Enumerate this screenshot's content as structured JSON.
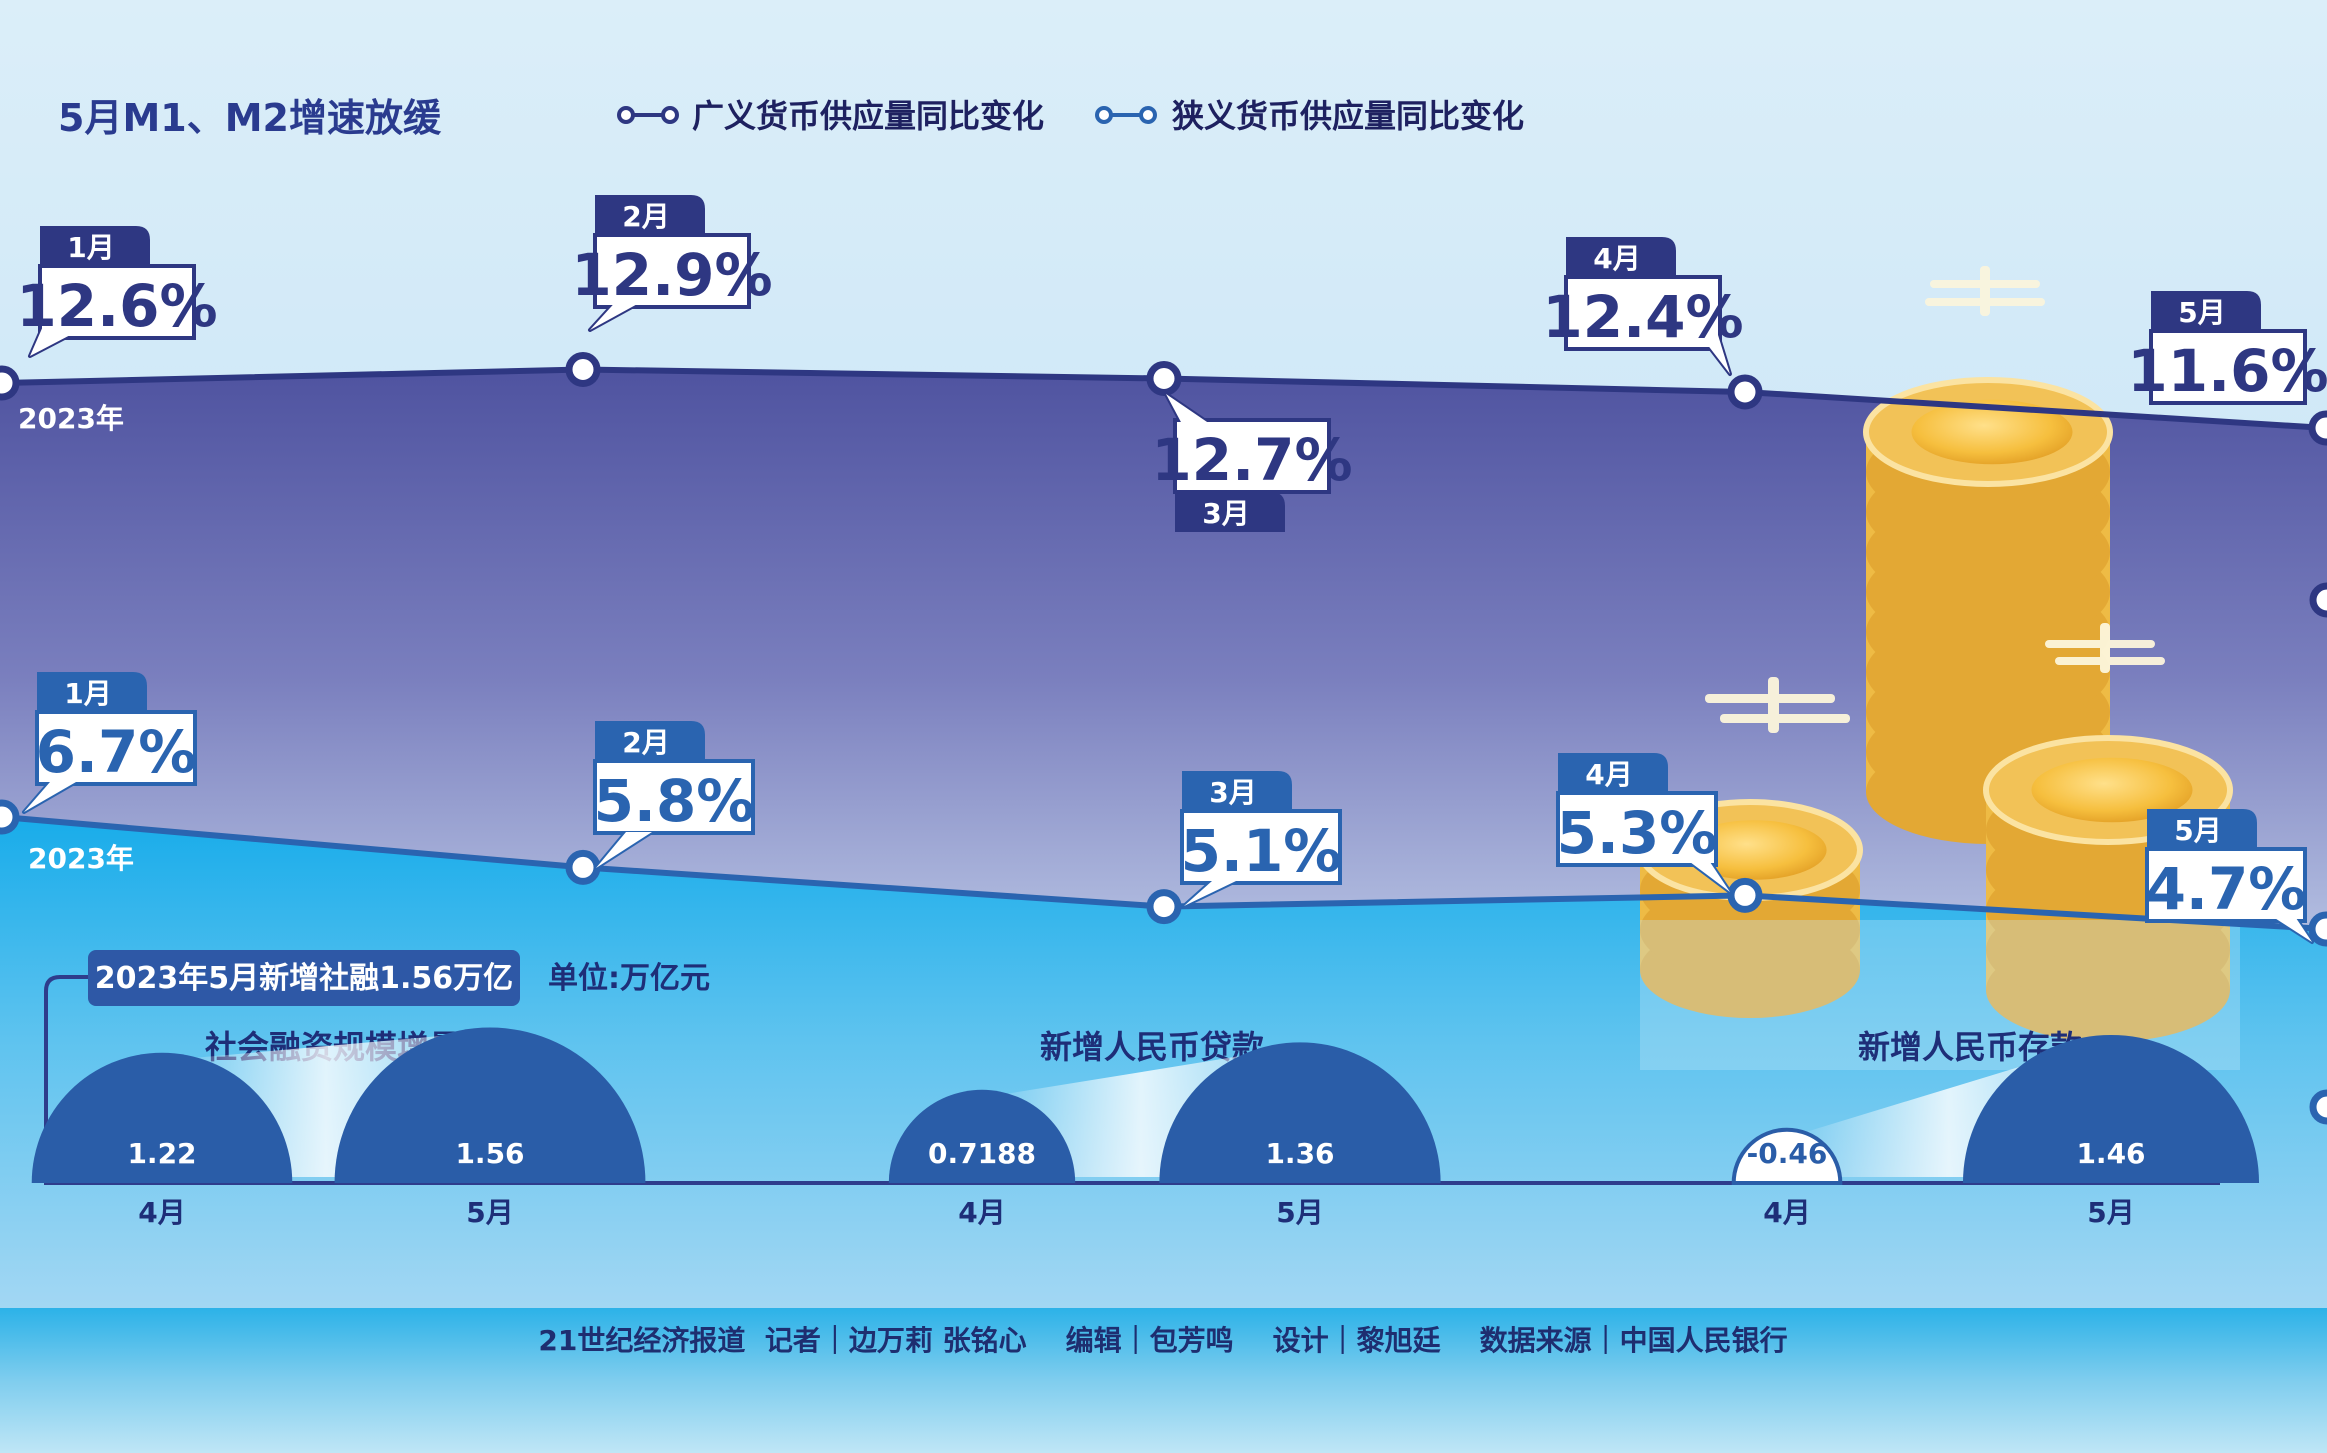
{
  "title": "5月M1、M2增速放缓",
  "legend": {
    "m2": "广义货币供应量同比变化",
    "m1": "狭义货币供应量同比变化"
  },
  "year_label": "2023年",
  "colors": {
    "navy": "#2e3782",
    "blue": "#2a64b0",
    "purple_top": "#5055a2",
    "purple_bottom": "#a9b4da",
    "sky": "#1fb1ea",
    "footer_band": "#29b1e8",
    "coin": "#f3c04c"
  },
  "chart_data": [
    {
      "type": "line",
      "title": "5月M1、M2增速放缓",
      "categories": [
        "1月",
        "2月",
        "3月",
        "4月",
        "5月"
      ],
      "series": [
        {
          "name": "广义货币供应量同比变化",
          "values": [
            12.6,
            12.9,
            12.7,
            12.4,
            11.6
          ],
          "labels": [
            "12.6%",
            "12.9%",
            "12.7%",
            "12.4%",
            "11.6%"
          ]
        },
        {
          "name": "狭义货币供应量同比变化",
          "values": [
            6.7,
            5.8,
            5.1,
            5.3,
            4.7
          ],
          "labels": [
            "6.7%",
            "5.8%",
            "5.1%",
            "5.3%",
            "4.7%"
          ]
        }
      ],
      "legend_position": "top"
    },
    {
      "type": "bar",
      "title": "2023年5月新增社融1.56万亿",
      "unit": "单位:万亿元",
      "groups": [
        {
          "name": "社会融资规模增量",
          "categories": [
            "4月",
            "5月"
          ],
          "values": [
            1.22,
            1.56
          ],
          "labels": [
            "1.22",
            "1.56"
          ]
        },
        {
          "name": "新增人民币贷款",
          "categories": [
            "4月",
            "5月"
          ],
          "values": [
            0.7188,
            1.36
          ],
          "labels": [
            "0.7188",
            "1.36"
          ]
        },
        {
          "name": "新增人民币存款",
          "categories": [
            "4月",
            "5月"
          ],
          "values": [
            -0.46,
            1.46
          ],
          "labels": [
            "-0.46",
            "1.46"
          ]
        }
      ]
    }
  ],
  "footer": "21世纪经济报道  记者｜边万莉 张铭心    编辑｜包芳鸣    设计｜黎旭廷    数据来源｜中国人民银行"
}
